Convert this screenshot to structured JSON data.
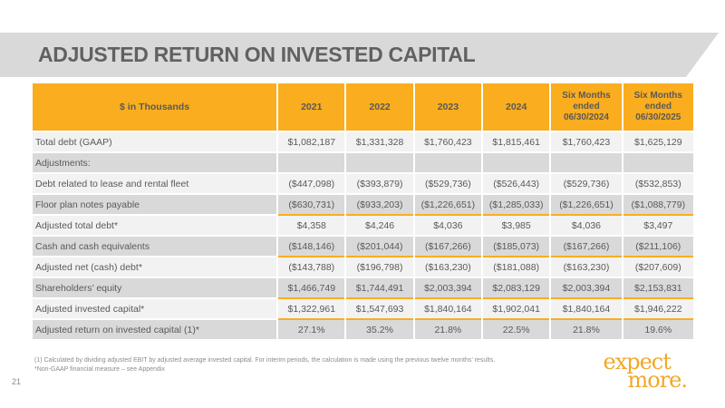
{
  "slide": {
    "title": "ADJUSTED RETURN ON INVESTED CAPITAL",
    "page_number": "21",
    "footnote1": "(1)   Calculated by dividing adjusted EBIT by adjusted average invested capital.  For interim periods, the calculation is made using the previous twelve months’ results.",
    "footnote2": "*Non-GAAP financial measure – see Appendix",
    "logo": {
      "line1": "expect",
      "line2": "more."
    }
  },
  "colors": {
    "accent_gold": "#FAAD1E",
    "banner_gray": "#D9D9D9",
    "row_light": "#F2F2F2",
    "row_dark": "#D9D9D9",
    "text_gray": "#595959",
    "logo_gold": "#F0A828"
  },
  "table": {
    "header": [
      "$ in Thousands",
      "2021",
      "2022",
      "2023",
      "2024",
      "Six Months ended 06/30/2024",
      "Six Months ended 06/30/2025"
    ],
    "rows": [
      {
        "label": "Total debt (GAAP)",
        "shade": "light",
        "total": false,
        "values": [
          "$1,082,187",
          "$1,331,328",
          "$1,760,423",
          "$1,815,461",
          "$1,760,423",
          "$1,625,129"
        ]
      },
      {
        "label": "Adjustments:",
        "shade": "dark",
        "total": false,
        "values": [
          "",
          "",
          "",
          "",
          "",
          ""
        ]
      },
      {
        "label": "Debt related to lease and rental fleet",
        "shade": "light",
        "total": false,
        "values": [
          "($447,098)",
          "($393,879)",
          "($529,736)",
          "($526,443)",
          "($529,736)",
          "($532,853)"
        ]
      },
      {
        "label": "Floor plan notes payable",
        "shade": "dark",
        "total": false,
        "values": [
          "($630,731)",
          "($933,203)",
          "($1,226,651)",
          "($1,285,033)",
          "($1,226,651)",
          "($1,088,779)"
        ]
      },
      {
        "label": "Adjusted total debt*",
        "shade": "light",
        "total": true,
        "values": [
          "$4,358",
          "$4,246",
          "$4,036",
          "$3,985",
          "$4,036",
          "$3,497"
        ]
      },
      {
        "label": "Cash and cash equivalents",
        "shade": "dark",
        "total": false,
        "values": [
          "($148,146)",
          "($201,044)",
          "($167,266)",
          "($185,073)",
          "($167,266)",
          "($211,106)"
        ]
      },
      {
        "label": "Adjusted net (cash) debt*",
        "shade": "light",
        "total": true,
        "values": [
          "($143,788)",
          "($196,798)",
          "($163,230)",
          "($181,088)",
          "($163,230)",
          "($207,609)"
        ]
      },
      {
        "label": "Shareholders’ equity",
        "shade": "dark",
        "total": false,
        "values": [
          "$1,466,749",
          "$1,744,491",
          "$2,003,394",
          "$2,083,129",
          "$2,003,394",
          "$2,153,831"
        ]
      },
      {
        "label": "Adjusted invested capital*",
        "shade": "light",
        "total": true,
        "values": [
          "$1,322,961",
          "$1,547,693",
          "$1,840,164",
          "$1,902,041",
          "$1,840,164",
          "$1,946,222"
        ]
      },
      {
        "label": "Adjusted return on invested capital (1)*",
        "shade": "dark",
        "total": true,
        "values": [
          "27.1%",
          "35.2%",
          "21.8%",
          "22.5%",
          "21.8%",
          "19.6%"
        ]
      }
    ]
  }
}
